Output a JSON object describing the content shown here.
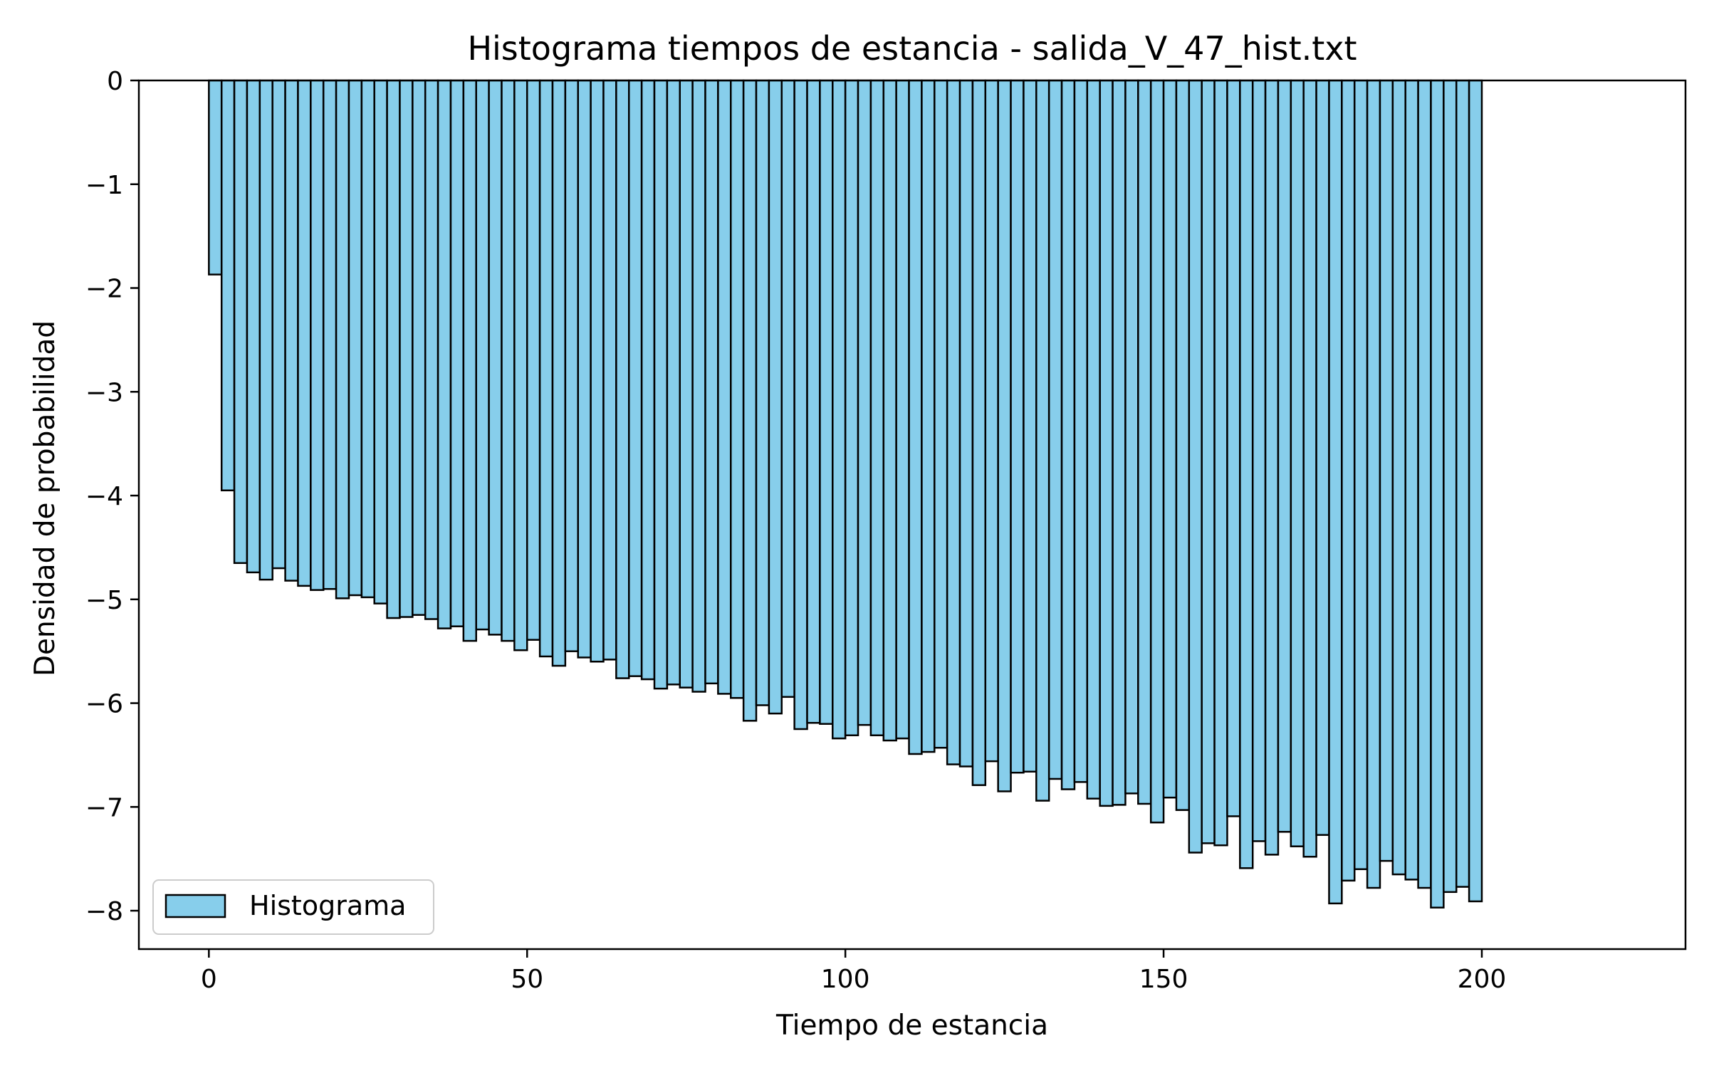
{
  "chart_data": {
    "type": "bar",
    "title": "Histograma tiempos de estancia - salida_V_47_hist.txt",
    "xlabel": "Tiempo de estancia",
    "ylabel": "Densidad de probabilidad",
    "xlim": [
      -11,
      232
    ],
    "ylim": [
      -8.37,
      0
    ],
    "xticks": [
      0,
      50,
      100,
      150,
      200
    ],
    "xtick_labels": [
      "0",
      "50",
      "100",
      "150",
      "200"
    ],
    "yticks": [
      0,
      -1,
      -2,
      -3,
      -4,
      -5,
      -6,
      -7,
      -8
    ],
    "ytick_labels": [
      "0",
      "−1",
      "−2",
      "−3",
      "−4",
      "−5",
      "−6",
      "−7",
      "−8"
    ],
    "grid": false,
    "legend_position": "lower-left",
    "bar_color": "#87ceeb",
    "edge_color": "#000000",
    "bin_start": 0,
    "bin_width": 2,
    "series": [
      {
        "name": "Histograma",
        "values": [
          -1.87,
          -3.95,
          -4.65,
          -4.74,
          -4.81,
          -4.7,
          -4.82,
          -4.87,
          -4.91,
          -4.9,
          -4.99,
          -4.96,
          -4.98,
          -5.04,
          -5.18,
          -5.17,
          -5.15,
          -5.19,
          -5.28,
          -5.26,
          -5.4,
          -5.29,
          -5.34,
          -5.4,
          -5.49,
          -5.39,
          -5.55,
          -5.64,
          -5.5,
          -5.56,
          -5.6,
          -5.58,
          -5.76,
          -5.74,
          -5.77,
          -5.86,
          -5.82,
          -5.85,
          -5.89,
          -5.81,
          -5.91,
          -5.95,
          -6.17,
          -6.02,
          -6.1,
          -5.94,
          -6.25,
          -6.19,
          -6.2,
          -6.34,
          -6.31,
          -6.21,
          -6.31,
          -6.36,
          -6.34,
          -6.49,
          -6.47,
          -6.43,
          -6.59,
          -6.61,
          -6.79,
          -6.56,
          -6.85,
          -6.67,
          -6.66,
          -6.94,
          -6.73,
          -6.83,
          -6.76,
          -6.92,
          -6.99,
          -6.98,
          -6.87,
          -6.97,
          -7.15,
          -6.91,
          -7.03,
          -7.44,
          -7.35,
          -7.37,
          -7.09,
          -7.59,
          -7.33,
          -7.46,
          -7.24,
          -7.38,
          -7.48,
          -7.27,
          -7.93,
          -7.71,
          -7.6,
          -7.78,
          -7.52,
          -7.65,
          -7.7,
          -7.78,
          -7.97,
          -7.82,
          -7.77,
          -7.91
        ]
      }
    ]
  }
}
